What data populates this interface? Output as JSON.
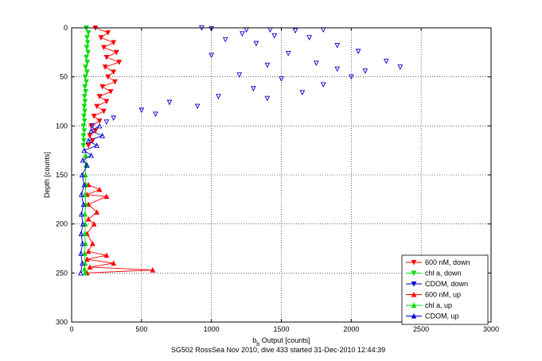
{
  "chart_data": {
    "type": "line",
    "title": "",
    "caption": "SG502 RossSea Nov 2010, dive 433 started 31-Dec-2010 12:44:39",
    "xlabel_main": "b",
    "xlabel_sub": "b",
    "xlabel_rest": " Output [counts]",
    "ylabel": "Depth [counts]",
    "xlim": [
      0,
      3000
    ],
    "ylim": [
      0,
      300
    ],
    "y_reversed": true,
    "grid": true,
    "x_ticks": [
      0,
      500,
      1000,
      1500,
      2000,
      2500,
      3000
    ],
    "y_ticks": [
      0,
      50,
      100,
      150,
      200,
      250,
      300
    ],
    "legend_position": "bottom-right",
    "series": [
      {
        "name": "600 nM, down",
        "color": "#ff0000",
        "marker": "triangle-down",
        "points": [
          [
            170,
            0
          ],
          [
            260,
            5
          ],
          [
            210,
            10
          ],
          [
            300,
            15
          ],
          [
            230,
            20
          ],
          [
            320,
            25
          ],
          [
            250,
            30
          ],
          [
            340,
            35
          ],
          [
            240,
            40
          ],
          [
            300,
            45
          ],
          [
            260,
            50
          ],
          [
            310,
            55
          ],
          [
            220,
            60
          ],
          [
            280,
            65
          ],
          [
            200,
            70
          ],
          [
            250,
            75
          ],
          [
            180,
            80
          ],
          [
            230,
            85
          ],
          [
            160,
            90
          ],
          [
            200,
            95
          ],
          [
            140,
            100
          ],
          [
            170,
            105
          ],
          [
            130,
            110
          ],
          [
            150,
            115
          ],
          [
            120,
            120
          ]
        ]
      },
      {
        "name": "chl a, down",
        "color": "#00dd00",
        "marker": "triangle-down",
        "points": [
          [
            105,
            0
          ],
          [
            120,
            5
          ],
          [
            110,
            10
          ],
          [
            115,
            15
          ],
          [
            108,
            20
          ],
          [
            118,
            25
          ],
          [
            105,
            30
          ],
          [
            112,
            35
          ],
          [
            100,
            40
          ],
          [
            110,
            45
          ],
          [
            98,
            50
          ],
          [
            105,
            55
          ],
          [
            95,
            60
          ],
          [
            100,
            65
          ],
          [
            92,
            70
          ],
          [
            96,
            75
          ],
          [
            90,
            80
          ],
          [
            94,
            85
          ],
          [
            88,
            90
          ],
          [
            92,
            95
          ],
          [
            86,
            100
          ],
          [
            90,
            105
          ],
          [
            85,
            110
          ],
          [
            88,
            115
          ],
          [
            84,
            120
          ]
        ]
      },
      {
        "name": "CDOM, down",
        "color": "#0000cc",
        "marker": "triangle-down",
        "points": [
          [
            930,
            0
          ],
          [
            1000,
            1
          ],
          [
            1250,
            2
          ],
          [
            1420,
            2
          ],
          [
            1600,
            3
          ],
          [
            1800,
            2
          ],
          [
            1220,
            6
          ],
          [
            1450,
            8
          ],
          [
            1700,
            10
          ],
          [
            1100,
            12
          ],
          [
            1900,
            18
          ],
          [
            1320,
            16
          ],
          [
            2050,
            24
          ],
          [
            1550,
            26
          ],
          [
            1000,
            28
          ],
          [
            2250,
            34
          ],
          [
            1750,
            36
          ],
          [
            1400,
            38
          ],
          [
            2350,
            40
          ],
          [
            1900,
            42
          ],
          [
            2100,
            44
          ],
          [
            1200,
            48
          ],
          [
            2000,
            50
          ],
          [
            1500,
            52
          ],
          [
            1800,
            58
          ],
          [
            1300,
            62
          ],
          [
            1650,
            66
          ],
          [
            1050,
            70
          ],
          [
            1400,
            72
          ],
          [
            700,
            76
          ],
          [
            900,
            80
          ],
          [
            500,
            84
          ],
          [
            600,
            88
          ],
          [
            300,
            92
          ],
          [
            250,
            96
          ],
          [
            150,
            100
          ]
        ]
      },
      {
        "name": "600 nM, up",
        "color": "#ff0000",
        "marker": "triangle-up",
        "points": [
          [
            120,
            160
          ],
          [
            200,
            165
          ],
          [
            110,
            170
          ],
          [
            250,
            172
          ],
          [
            120,
            180
          ],
          [
            180,
            188
          ],
          [
            120,
            195
          ],
          [
            160,
            200
          ],
          [
            110,
            210
          ],
          [
            150,
            220
          ],
          [
            120,
            228
          ],
          [
            250,
            232
          ],
          [
            110,
            236
          ],
          [
            300,
            240
          ],
          [
            130,
            244
          ],
          [
            580,
            247
          ],
          [
            110,
            250
          ]
        ]
      },
      {
        "name": "chl a, up",
        "color": "#00dd00",
        "marker": "triangle-up",
        "points": [
          [
            100,
            130
          ],
          [
            104,
            140
          ],
          [
            98,
            150
          ],
          [
            102,
            160
          ],
          [
            96,
            170
          ],
          [
            100,
            180
          ],
          [
            95,
            190
          ],
          [
            99,
            200
          ],
          [
            94,
            210
          ],
          [
            98,
            220
          ],
          [
            93,
            230
          ],
          [
            97,
            240
          ],
          [
            92,
            246
          ],
          [
            96,
            250
          ]
        ]
      },
      {
        "name": "CDOM, up",
        "color": "#0000cc",
        "marker": "triangle-up",
        "points": [
          [
            200,
            100
          ],
          [
            140,
            105
          ],
          [
            220,
            110
          ],
          [
            120,
            115
          ],
          [
            180,
            120
          ],
          [
            90,
            125
          ],
          [
            140,
            130
          ],
          [
            80,
            135
          ],
          [
            110,
            140
          ],
          [
            75,
            150
          ],
          [
            90,
            160
          ],
          [
            70,
            170
          ],
          [
            85,
            180
          ],
          [
            70,
            190
          ],
          [
            80,
            200
          ],
          [
            68,
            210
          ],
          [
            78,
            220
          ],
          [
            66,
            230
          ],
          [
            76,
            240
          ],
          [
            65,
            250
          ]
        ]
      }
    ]
  }
}
